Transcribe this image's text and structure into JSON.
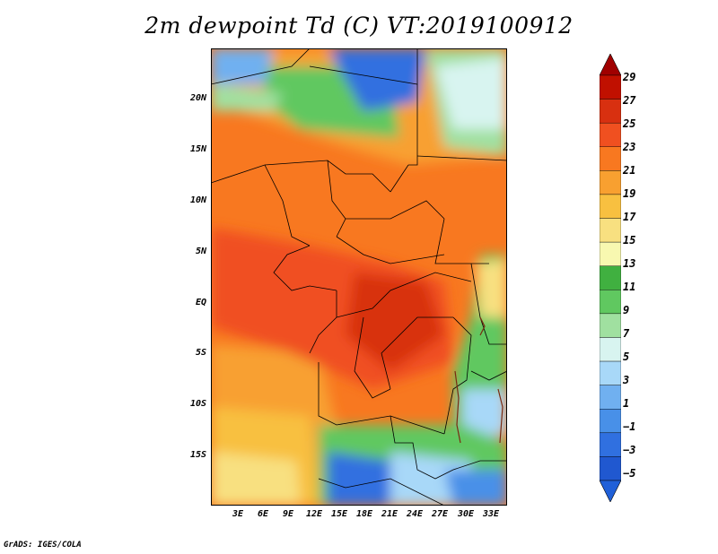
{
  "title": "2m dewpoint Td (C) VT:2019100912",
  "lat_labels": [
    "20N",
    "15N",
    "10N",
    "5N",
    "EQ",
    "5S",
    "10S",
    "15S"
  ],
  "lon_labels": [
    "3E",
    "6E",
    "9E",
    "12E",
    "15E",
    "18E",
    "21E",
    "24E",
    "27E",
    "30E",
    "33E"
  ],
  "colorbar": {
    "labels": [
      "29",
      "27",
      "25",
      "23",
      "21",
      "19",
      "17",
      "15",
      "13",
      "11",
      "9",
      "7",
      "5",
      "3",
      "1",
      "−1",
      "−3",
      "−5"
    ],
    "colors": [
      "#a00000",
      "#c01000",
      "#d83010",
      "#f05020",
      "#f87820",
      "#f8a030",
      "#f8c040",
      "#f8e080",
      "#f8f8b0",
      "#40b040",
      "#60c860",
      "#a0e0a0",
      "#d8f4f0",
      "#a8d8f8",
      "#70b0f0",
      "#4890e8",
      "#3070e0",
      "#2058d0",
      "#2060d8"
    ]
  },
  "footer": "GrADS: IGES/COLA"
}
